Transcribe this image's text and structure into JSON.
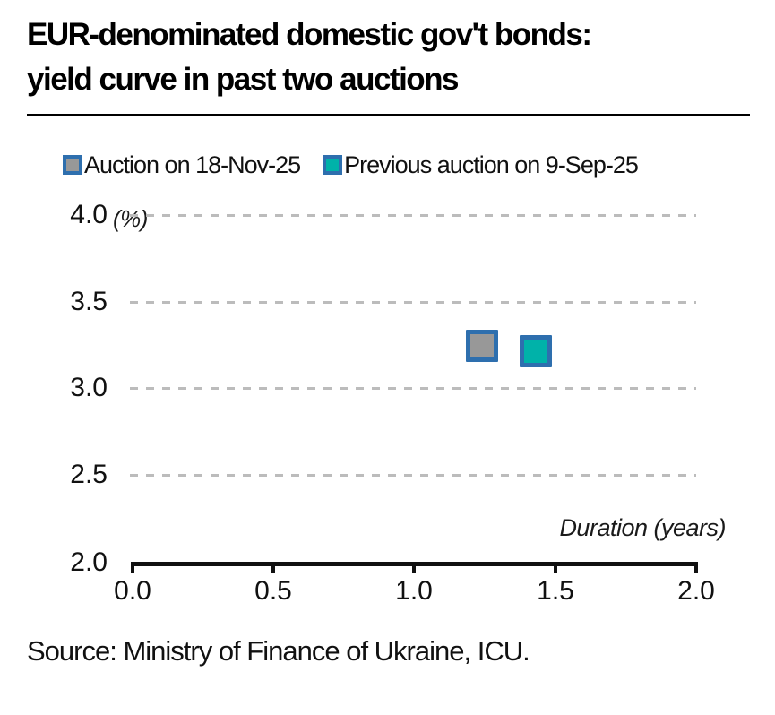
{
  "title": {
    "line1": "EUR-denominated domestic gov't bonds:",
    "line2": "yield curve in past two auctions"
  },
  "legend": [
    {
      "label": "Auction on 18-Nov-25",
      "fill": "#989898",
      "border": "#2e6fae"
    },
    {
      "label": "Previous auction on 9-Sep-25",
      "fill": "#00b2a9",
      "border": "#2e6fae"
    }
  ],
  "source": "Source: Ministry of Finance of Ukraine, ICU.",
  "chart_data": {
    "type": "scatter",
    "title": "EUR-denominated domestic gov't bonds: yield curve in past two auctions",
    "xlabel": "Duration (years)",
    "ylabel": "(%)",
    "xlim": [
      0.0,
      2.0
    ],
    "ylim": [
      2.0,
      4.0
    ],
    "x_ticks": [
      "0.0",
      "0.5",
      "1.0",
      "1.5",
      "2.0"
    ],
    "y_ticks": [
      "4.0",
      "3.5",
      "3.0",
      "2.5",
      "2.0"
    ],
    "grid": "horizontal dashed gray lines at 2.5, 3.0, 3.5, 4.0",
    "legend_position": "top",
    "marker": "square",
    "series": [
      {
        "name": "Auction on 18-Nov-25",
        "color": "#989898",
        "border_color": "#2e6fae",
        "points": [
          {
            "x": 1.24,
            "y": 3.25
          }
        ]
      },
      {
        "name": "Previous auction on 9-Sep-25",
        "color": "#00b2a9",
        "border_color": "#2e6fae",
        "points": [
          {
            "x": 1.43,
            "y": 3.22
          }
        ]
      }
    ]
  }
}
